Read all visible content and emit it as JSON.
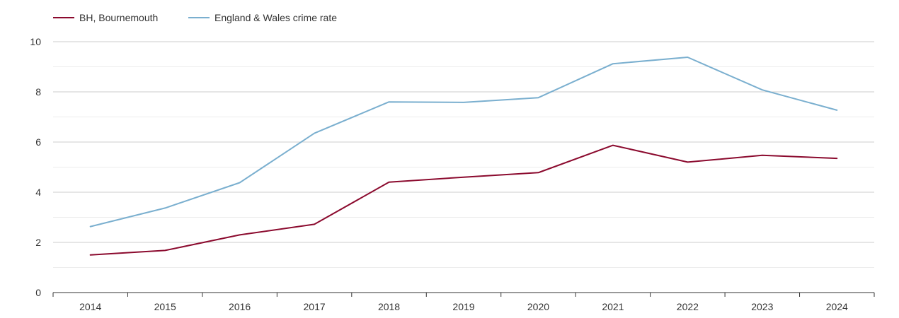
{
  "chart_data": {
    "type": "line",
    "title": "",
    "xlabel": "",
    "ylabel": "",
    "x": [
      "2014",
      "2015",
      "2016",
      "2017",
      "2018",
      "2019",
      "2020",
      "2021",
      "2022",
      "2023",
      "2024"
    ],
    "ylim": [
      0,
      10
    ],
    "y_ticks": [
      "0",
      "2",
      "4",
      "6",
      "8",
      "10"
    ],
    "grid": true,
    "legend_position": "top-left",
    "series": [
      {
        "name": "BH, Bournemouth",
        "color": "#8b0a2e",
        "values": [
          1.5,
          1.68,
          2.3,
          2.72,
          4.4,
          4.6,
          4.78,
          5.87,
          5.2,
          5.47,
          5.35
        ]
      },
      {
        "name": "England & Wales crime rate",
        "color": "#7aafcf",
        "values": [
          2.63,
          3.37,
          4.38,
          6.35,
          7.6,
          7.58,
          7.77,
          9.12,
          9.38,
          8.08,
          7.27
        ]
      }
    ]
  }
}
